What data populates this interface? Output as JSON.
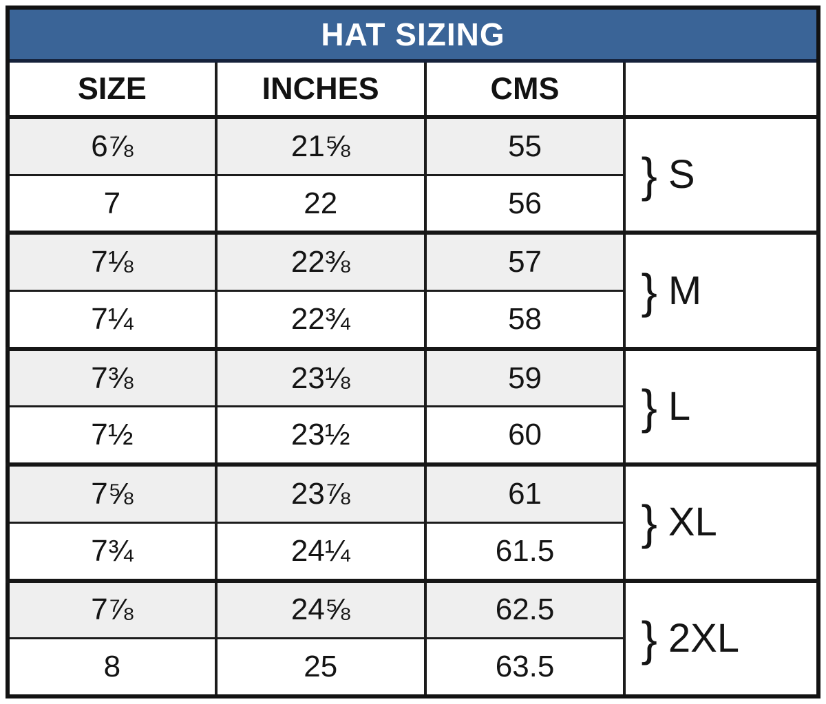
{
  "header": {
    "title": "HAT SIZING"
  },
  "colors": {
    "title_bg": "#3a6497",
    "title_text": "#ffffff",
    "row_shaded": "#efefef",
    "row_plain": "#ffffff",
    "border": "#1c1c1c"
  },
  "table": {
    "columns": [
      "SIZE",
      "INCHES",
      "CMS",
      ""
    ],
    "rows": [
      {
        "size": "6⅞",
        "inches": "21⅝",
        "cms": "55"
      },
      {
        "size": "7",
        "inches": "22",
        "cms": "56"
      },
      {
        "size": "7⅛",
        "inches": "22⅜",
        "cms": "57"
      },
      {
        "size": "7¼",
        "inches": "22¾",
        "cms": "58"
      },
      {
        "size": "7⅜",
        "inches": "23⅛",
        "cms": "59"
      },
      {
        "size": "7½",
        "inches": "23½",
        "cms": "60"
      },
      {
        "size": "7⅝",
        "inches": "23⅞",
        "cms": "61"
      },
      {
        "size": "7¾",
        "inches": "24¼",
        "cms": "61.5"
      },
      {
        "size": "7⅞",
        "inches": "24⅝",
        "cms": "62.5"
      },
      {
        "size": "8",
        "inches": "25",
        "cms": "63.5"
      }
    ],
    "groups": [
      {
        "brace": "}",
        "label": "S"
      },
      {
        "brace": "}",
        "label": "M"
      },
      {
        "brace": "}",
        "label": "L"
      },
      {
        "brace": "}",
        "label": "XL"
      },
      {
        "brace": "}",
        "label": "2XL"
      }
    ]
  },
  "chart_data": {
    "type": "table",
    "title": "HAT SIZING",
    "columns": [
      "SIZE",
      "INCHES",
      "CMS",
      ""
    ],
    "rows": [
      [
        "6⅞",
        "21⅝",
        "55",
        "S"
      ],
      [
        "7",
        "22",
        "56",
        "S"
      ],
      [
        "7⅛",
        "22⅜",
        "57",
        "M"
      ],
      [
        "7¼",
        "22¾",
        "58",
        "M"
      ],
      [
        "7⅜",
        "23⅛",
        "59",
        "L"
      ],
      [
        "7½",
        "23½",
        "60",
        "L"
      ],
      [
        "7⅝",
        "23⅞",
        "61",
        "XL"
      ],
      [
        "7¾",
        "24¼",
        "61.5",
        "XL"
      ],
      [
        "7⅞",
        "24⅝",
        "62.5",
        "2XL"
      ],
      [
        "8",
        "25",
        "63.5",
        "2XL"
      ]
    ],
    "layout": {
      "group_column_spans_two_rows": true,
      "shaded_rows": [
        0,
        2,
        4,
        6,
        8
      ]
    }
  }
}
